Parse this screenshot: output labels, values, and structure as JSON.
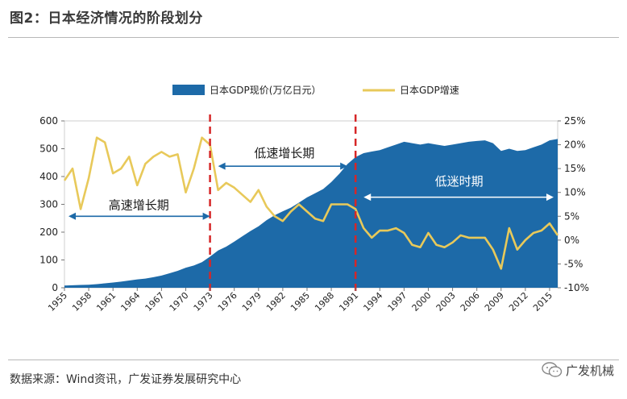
{
  "header": {
    "title": "图2：日本经济情况的阶段划分"
  },
  "footer": {
    "source": "数据来源：Wind资讯，广发证券发展研究中心",
    "watermark": "广发机械"
  },
  "chart_data": {
    "type": "area+line",
    "title": "图2：日本经济情况的阶段划分",
    "legend": {
      "placement": "top-center",
      "entries": [
        "日本GDP现价(万亿日元）",
        "日本GDP增速"
      ]
    },
    "colors": {
      "area": "#1d6aa8",
      "line": "#e8c95a",
      "divider": "#d62728",
      "arrow": "#1d6aa8"
    },
    "x_start": 1955,
    "x_end": 2016,
    "xtick_labels": [
      "1955",
      "1958",
      "1961",
      "1964",
      "1967",
      "1970",
      "1973",
      "1976",
      "1979",
      "1982",
      "1985",
      "1988",
      "1991",
      "1994",
      "1997",
      "2000",
      "2003",
      "2006",
      "2009",
      "2012",
      "2015"
    ],
    "y_left": {
      "range": [
        0,
        600
      ],
      "ticks": [
        "0",
        "100",
        "200",
        "300",
        "400",
        "500",
        "600"
      ]
    },
    "y_right": {
      "range": [
        -10,
        25
      ],
      "ticks": [
        "-10%",
        "-5%",
        "0%",
        "5%",
        "10%",
        "15%",
        "20%",
        "25%"
      ]
    },
    "series": [
      {
        "name": "日本GDP现价(万亿日元）",
        "axis": "left",
        "style": "area",
        "x": [
          1955,
          1956,
          1957,
          1958,
          1959,
          1960,
          1961,
          1962,
          1963,
          1964,
          1965,
          1966,
          1967,
          1968,
          1969,
          1970,
          1971,
          1972,
          1973,
          1974,
          1975,
          1976,
          1977,
          1978,
          1979,
          1980,
          1981,
          1982,
          1983,
          1984,
          1985,
          1986,
          1987,
          1988,
          1989,
          1990,
          1991,
          1992,
          1993,
          1994,
          1995,
          1996,
          1997,
          1998,
          1999,
          2000,
          2001,
          2002,
          2003,
          2004,
          2005,
          2006,
          2007,
          2008,
          2009,
          2010,
          2011,
          2012,
          2013,
          2014,
          2015,
          2016
        ],
        "values": [
          8,
          9,
          10,
          11,
          13,
          16,
          19,
          22,
          26,
          30,
          33,
          38,
          44,
          52,
          61,
          72,
          80,
          92,
          112,
          134,
          148,
          166,
          185,
          204,
          221,
          243,
          261,
          275,
          288,
          306,
          325,
          340,
          355,
          380,
          410,
          445,
          470,
          484,
          490,
          495,
          505,
          515,
          525,
          520,
          515,
          520,
          515,
          510,
          515,
          520,
          525,
          528,
          530,
          520,
          492,
          500,
          492,
          495,
          505,
          515,
          530,
          535
        ]
      },
      {
        "name": "日本GDP增速",
        "axis": "right",
        "style": "line",
        "x": [
          1955,
          1956,
          1957,
          1958,
          1959,
          1960,
          1961,
          1962,
          1963,
          1964,
          1965,
          1966,
          1967,
          1968,
          1969,
          1970,
          1971,
          1972,
          1973,
          1974,
          1975,
          1976,
          1977,
          1978,
          1979,
          1980,
          1981,
          1982,
          1983,
          1984,
          1985,
          1986,
          1987,
          1988,
          1989,
          1990,
          1991,
          1992,
          1993,
          1994,
          1995,
          1996,
          1997,
          1998,
          1999,
          2000,
          2001,
          2002,
          2003,
          2004,
          2005,
          2006,
          2007,
          2008,
          2009,
          2010,
          2011,
          2012,
          2013,
          2014,
          2015,
          2016
        ],
        "values": [
          12.5,
          15.0,
          6.5,
          13.0,
          21.5,
          20.5,
          14.0,
          15.0,
          17.5,
          11.5,
          16.0,
          17.5,
          18.5,
          17.5,
          18.0,
          10.0,
          15.0,
          21.5,
          20.0,
          10.5,
          12.0,
          11.0,
          9.5,
          8.0,
          10.5,
          7.0,
          5.0,
          4.0,
          6.0,
          7.5,
          6.0,
          4.5,
          4.0,
          7.5,
          7.5,
          7.5,
          6.5,
          2.5,
          0.5,
          2.0,
          2.0,
          2.5,
          1.5,
          -1.0,
          -1.5,
          1.5,
          -1.0,
          -1.5,
          -0.5,
          1.0,
          0.5,
          0.5,
          0.5,
          -2.0,
          -6.0,
          2.5,
          -2.0,
          0.0,
          1.5,
          2.0,
          3.5,
          1.0
        ]
      }
    ],
    "dividers": [
      1973,
      1991
    ],
    "annotations": [
      {
        "text": "高速增长期",
        "x_from": 1955.5,
        "x_to": 1973,
        "y_pct": 5.0,
        "label_pct": 7.3,
        "label_x": 1964.2
      },
      {
        "text": "低速增长期",
        "x_from": 1974,
        "x_to": 1990,
        "y_pct": 15.5,
        "label_pct": 18.2,
        "label_x": 1982.2
      },
      {
        "text": "低迷时期",
        "x_from": 1992,
        "x_to": 2015.5,
        "y_pct": 9.0,
        "label_pct": 12.3,
        "label_x": 2003.8
      }
    ]
  }
}
